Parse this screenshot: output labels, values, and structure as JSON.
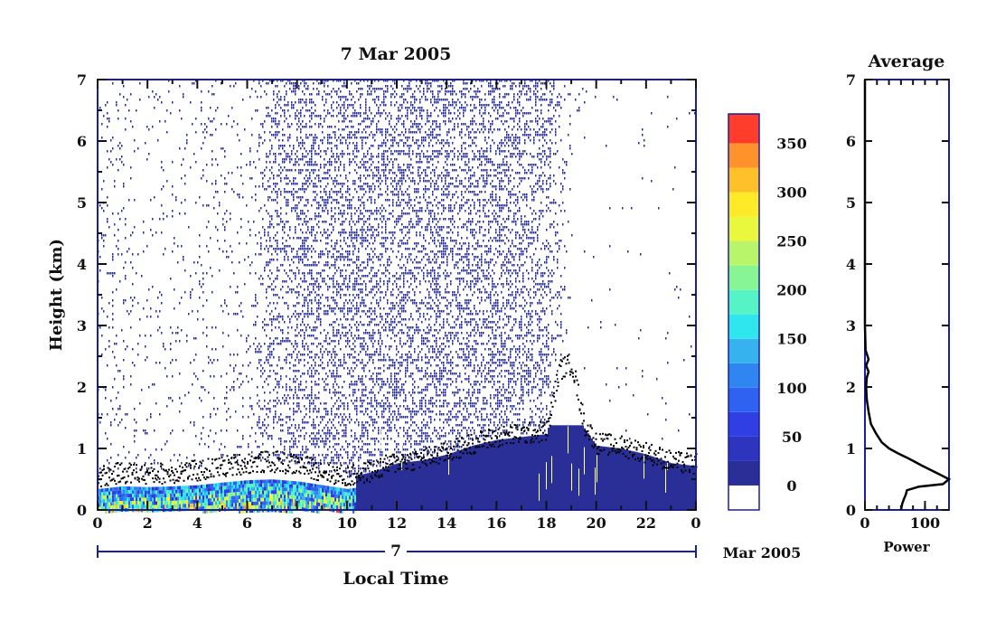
{
  "chart_data": [
    {
      "type": "heatmap",
      "title": "7 Mar 2005",
      "xlabel": "Local Time",
      "ylabel": "Height (km)",
      "xlim": [
        0,
        24
      ],
      "ylim": [
        0,
        7
      ],
      "x_tick_labels": [
        "0",
        "2",
        "4",
        "6",
        "8",
        "10",
        "12",
        "14",
        "16",
        "18",
        "20",
        "22",
        "0"
      ],
      "y_tick_labels": [
        "0",
        "1",
        "2",
        "3",
        "4",
        "5",
        "6",
        "7"
      ],
      "date_bar_label": "7",
      "date_suffix": "Mar 2005",
      "boundary_layer_top_km": [
        [
          0,
          0.55
        ],
        [
          1,
          0.62
        ],
        [
          2,
          0.6
        ],
        [
          3,
          0.62
        ],
        [
          4,
          0.65
        ],
        [
          5,
          0.72
        ],
        [
          6,
          0.78
        ],
        [
          7,
          0.8
        ],
        [
          8,
          0.75
        ],
        [
          9,
          0.65
        ],
        [
          10,
          0.55
        ],
        [
          11,
          0.65
        ],
        [
          12,
          0.8
        ],
        [
          13,
          0.85
        ],
        [
          14,
          0.95
        ],
        [
          15,
          1.1
        ],
        [
          16,
          1.2
        ],
        [
          17,
          1.25
        ],
        [
          18,
          1.3
        ],
        [
          18.5,
          2.3
        ],
        [
          19,
          2.4
        ],
        [
          19.5,
          1.4
        ],
        [
          20,
          1.1
        ],
        [
          21,
          1.05
        ],
        [
          22,
          0.95
        ],
        [
          23,
          0.8
        ],
        [
          24,
          0.75
        ]
      ],
      "surface_layer": {
        "colorful_until_hour": 10.3,
        "uniform_value_after": 15
      },
      "noise_column_density": [
        [
          0,
          0.12
        ],
        [
          1,
          0.18
        ],
        [
          2,
          0.08
        ],
        [
          3,
          0.1
        ],
        [
          4,
          0.12
        ],
        [
          5,
          0.14
        ],
        [
          6,
          0.12
        ],
        [
          7,
          0.55
        ],
        [
          8,
          0.7
        ],
        [
          9,
          0.75
        ],
        [
          10,
          0.78
        ],
        [
          11,
          0.78
        ],
        [
          12,
          0.78
        ],
        [
          13,
          0.78
        ],
        [
          14,
          0.78
        ],
        [
          15,
          0.78
        ],
        [
          16,
          0.78
        ],
        [
          17,
          0.75
        ],
        [
          18,
          0.6
        ],
        [
          19,
          0.03
        ],
        [
          20,
          0.02
        ],
        [
          21,
          0.02
        ],
        [
          22,
          0.01
        ],
        [
          23,
          0.02
        ]
      ]
    },
    {
      "type": "colorbar",
      "tick_labels": [
        "0",
        "50",
        "100",
        "150",
        "200",
        "250",
        "300",
        "350"
      ],
      "tick_values": [
        0,
        50,
        100,
        150,
        200,
        250,
        300,
        350
      ],
      "range": [
        -25,
        380
      ],
      "levels": [
        {
          "from": -25,
          "to": 0,
          "color": "#ffffff"
        },
        {
          "from": 0,
          "to": 25,
          "color": "#2a2f97"
        },
        {
          "from": 25,
          "to": 50,
          "color": "#2d34bd"
        },
        {
          "from": 50,
          "to": 75,
          "color": "#2f3fe3"
        },
        {
          "from": 75,
          "to": 100,
          "color": "#2f62f0"
        },
        {
          "from": 100,
          "to": 125,
          "color": "#2f86f0"
        },
        {
          "from": 125,
          "to": 150,
          "color": "#36b2ef"
        },
        {
          "from": 150,
          "to": 175,
          "color": "#2fe6ef"
        },
        {
          "from": 175,
          "to": 200,
          "color": "#55f3c6"
        },
        {
          "from": 200,
          "to": 225,
          "color": "#88f595"
        },
        {
          "from": 225,
          "to": 250,
          "color": "#b9f56a"
        },
        {
          "from": 250,
          "to": 275,
          "color": "#e9f83c"
        },
        {
          "from": 275,
          "to": 300,
          "color": "#ffea2a"
        },
        {
          "from": 300,
          "to": 325,
          "color": "#ffc12a"
        },
        {
          "from": 325,
          "to": 350,
          "color": "#ff922a"
        },
        {
          "from": 350,
          "to": 380,
          "color": "#ff3d2a"
        }
      ]
    },
    {
      "type": "line",
      "title": "Average",
      "xlabel": "Power",
      "xlim": [
        0,
        140
      ],
      "ylim": [
        0,
        7
      ],
      "x_tick_labels": [
        "0",
        "100"
      ],
      "x_tick_values": [
        0,
        100
      ],
      "y_tick_labels": [
        "0",
        "1",
        "2",
        "3",
        "4",
        "5",
        "6",
        "7"
      ],
      "profile": [
        [
          60,
          0.0
        ],
        [
          62,
          0.1
        ],
        [
          65,
          0.18
        ],
        [
          68,
          0.25
        ],
        [
          70,
          0.32
        ],
        [
          90,
          0.38
        ],
        [
          130,
          0.42
        ],
        [
          140,
          0.5
        ],
        [
          120,
          0.6
        ],
        [
          95,
          0.72
        ],
        [
          80,
          0.8
        ],
        [
          70,
          0.85
        ],
        [
          55,
          0.92
        ],
        [
          40,
          1.0
        ],
        [
          28,
          1.1
        ],
        [
          18,
          1.25
        ],
        [
          10,
          1.4
        ],
        [
          6,
          1.6
        ],
        [
          3,
          1.8
        ],
        [
          2,
          2.0
        ],
        [
          3,
          2.15
        ],
        [
          6,
          2.25
        ],
        [
          2,
          2.35
        ],
        [
          6,
          2.45
        ],
        [
          1,
          2.6
        ],
        [
          0,
          3.0
        ],
        [
          0,
          7.0
        ]
      ]
    }
  ],
  "colors": {
    "frame": "#1a1f9e",
    "text": "#111111",
    "noise": "#2a2f97",
    "surface": "#2a2f97",
    "boundary_points": "#000000"
  }
}
